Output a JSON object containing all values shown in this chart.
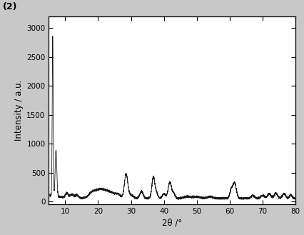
{
  "title_label": "(2)",
  "xlabel": "2θ /°",
  "ylabel": "Intensity / a.u.",
  "xlim": [
    5,
    80
  ],
  "ylim": [
    -50,
    3200
  ],
  "xticks": [
    10,
    20,
    30,
    40,
    50,
    60,
    70,
    80
  ],
  "yticks": [
    0,
    500,
    1000,
    1500,
    2000,
    2500,
    3000
  ],
  "line_color": "#1a1a1a",
  "bg_color": "#ffffff",
  "fig_bg_color": "#c8c8c8",
  "linewidth": 0.6
}
